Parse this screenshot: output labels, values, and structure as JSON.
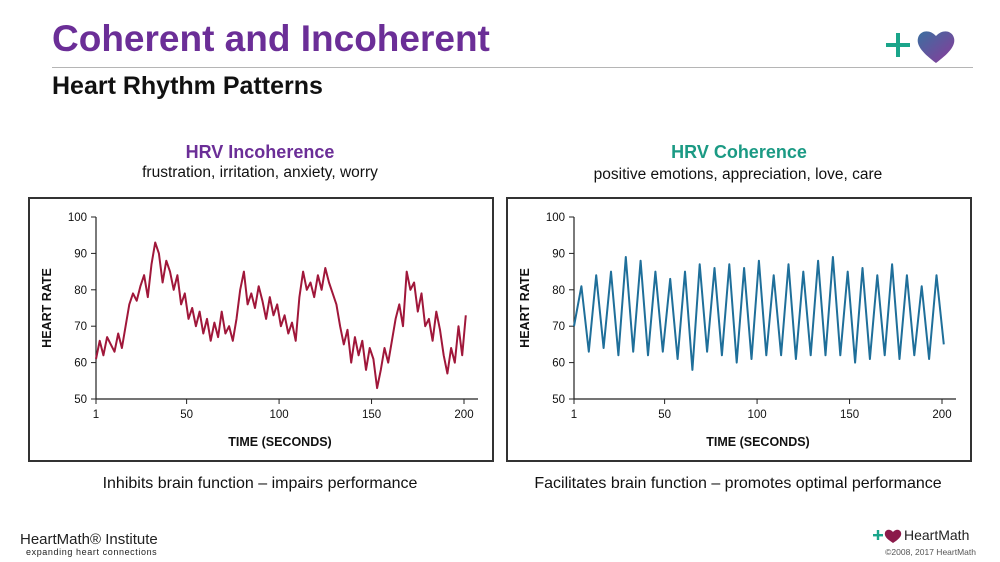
{
  "header": {
    "title": "Coherent and Incoherent",
    "subtitle": "Heart Rhythm Patterns"
  },
  "logo_top": {
    "icon": "plus-heart-logo-icon",
    "accent_plus": "#1aa58a",
    "heart_colors": [
      "#3b6fa0",
      "#8b3a9a"
    ]
  },
  "left_panel": {
    "heading": "HRV Incoherence",
    "heading_color": "#6b2e97",
    "emotions": "frustration, irritation, anxiety, worry",
    "caption": "Inhibits brain function – impairs performance"
  },
  "right_panel": {
    "heading": "HRV Coherence",
    "heading_color": "#1b9a84",
    "emotions": "positive emotions, appreciation, love, care",
    "caption": "Facilitates brain function – promotes optimal performance"
  },
  "chart_data": [
    {
      "type": "line",
      "xlabel": "TIME (SECONDS)",
      "ylabel": "HEART RATE",
      "xlim": [
        1,
        200
      ],
      "ylim": [
        50,
        100
      ],
      "xticks": [
        1,
        50,
        100,
        150,
        200
      ],
      "yticks": [
        50,
        60,
        70,
        80,
        90,
        100
      ],
      "color": "#a0173a",
      "series": [
        {
          "x": [
            1,
            3,
            5,
            7,
            9,
            11,
            13,
            15,
            17,
            19,
            21,
            23,
            25,
            27,
            29,
            31,
            33,
            35,
            37,
            39,
            41,
            43,
            45,
            47,
            49,
            51,
            53,
            55,
            57,
            59,
            61,
            63,
            65,
            67,
            69,
            71,
            73,
            75,
            77,
            79,
            81,
            83,
            85,
            87,
            89,
            91,
            93,
            95,
            97,
            99,
            101,
            103,
            105,
            107,
            109,
            111,
            113,
            115,
            117,
            119,
            121,
            123,
            125,
            127,
            129,
            131,
            133,
            135,
            137,
            139,
            141,
            143,
            145,
            147,
            149,
            151,
            153,
            155,
            157,
            159,
            161,
            163,
            165,
            167,
            169,
            171,
            173,
            175,
            177,
            179,
            181,
            183,
            185,
            187,
            189,
            191,
            193,
            195,
            197,
            199,
            201
          ],
          "y": [
            61,
            66,
            62,
            67,
            65,
            63,
            68,
            64,
            70,
            76,
            79,
            77,
            81,
            84,
            78,
            87,
            93,
            90,
            82,
            88,
            85,
            80,
            84,
            76,
            79,
            72,
            75,
            70,
            74,
            68,
            72,
            66,
            71,
            67,
            74,
            68,
            70,
            66,
            72,
            80,
            85,
            76,
            79,
            75,
            81,
            77,
            72,
            78,
            73,
            76,
            70,
            73,
            68,
            71,
            66,
            78,
            85,
            80,
            82,
            78,
            84,
            80,
            86,
            82,
            79,
            76,
            70,
            65,
            69,
            60,
            67,
            62,
            66,
            58,
            64,
            61,
            53,
            58,
            64,
            60,
            66,
            72,
            76,
            70,
            85,
            80,
            82,
            74,
            79,
            70,
            72,
            66,
            74,
            69,
            62,
            57,
            64,
            60,
            70,
            62,
            73
          ]
        }
      ]
    },
    {
      "type": "line",
      "xlabel": "TIME (SECONDS)",
      "ylabel": "HEART RATE",
      "xlim": [
        1,
        200
      ],
      "ylim": [
        50,
        100
      ],
      "xticks": [
        1,
        50,
        100,
        150,
        200
      ],
      "yticks": [
        50,
        60,
        70,
        80,
        90,
        100
      ],
      "color": "#1f6f9a",
      "series": [
        {
          "x": [
            1,
            5,
            9,
            13,
            17,
            21,
            25,
            29,
            33,
            37,
            41,
            45,
            49,
            53,
            57,
            61,
            65,
            69,
            73,
            77,
            81,
            85,
            89,
            93,
            97,
            101,
            105,
            109,
            113,
            117,
            121,
            125,
            129,
            133,
            137,
            141,
            145,
            149,
            153,
            157,
            161,
            165,
            169,
            173,
            177,
            181,
            185,
            189,
            193,
            197,
            201
          ],
          "y": [
            70,
            81,
            63,
            84,
            64,
            85,
            62,
            89,
            63,
            88,
            62,
            85,
            63,
            83,
            61,
            85,
            58,
            87,
            63,
            86,
            62,
            87,
            60,
            86,
            61,
            88,
            62,
            84,
            62,
            87,
            61,
            85,
            62,
            88,
            62,
            89,
            62,
            85,
            60,
            86,
            61,
            84,
            62,
            87,
            61,
            84,
            62,
            81,
            61,
            84,
            65
          ]
        }
      ]
    }
  ],
  "footer": {
    "brand_left": "HeartMath® Institute",
    "tagline": "expanding heart connections",
    "brand_right": "HeartMath",
    "copyright": "©2008, 2017 HeartMath"
  }
}
